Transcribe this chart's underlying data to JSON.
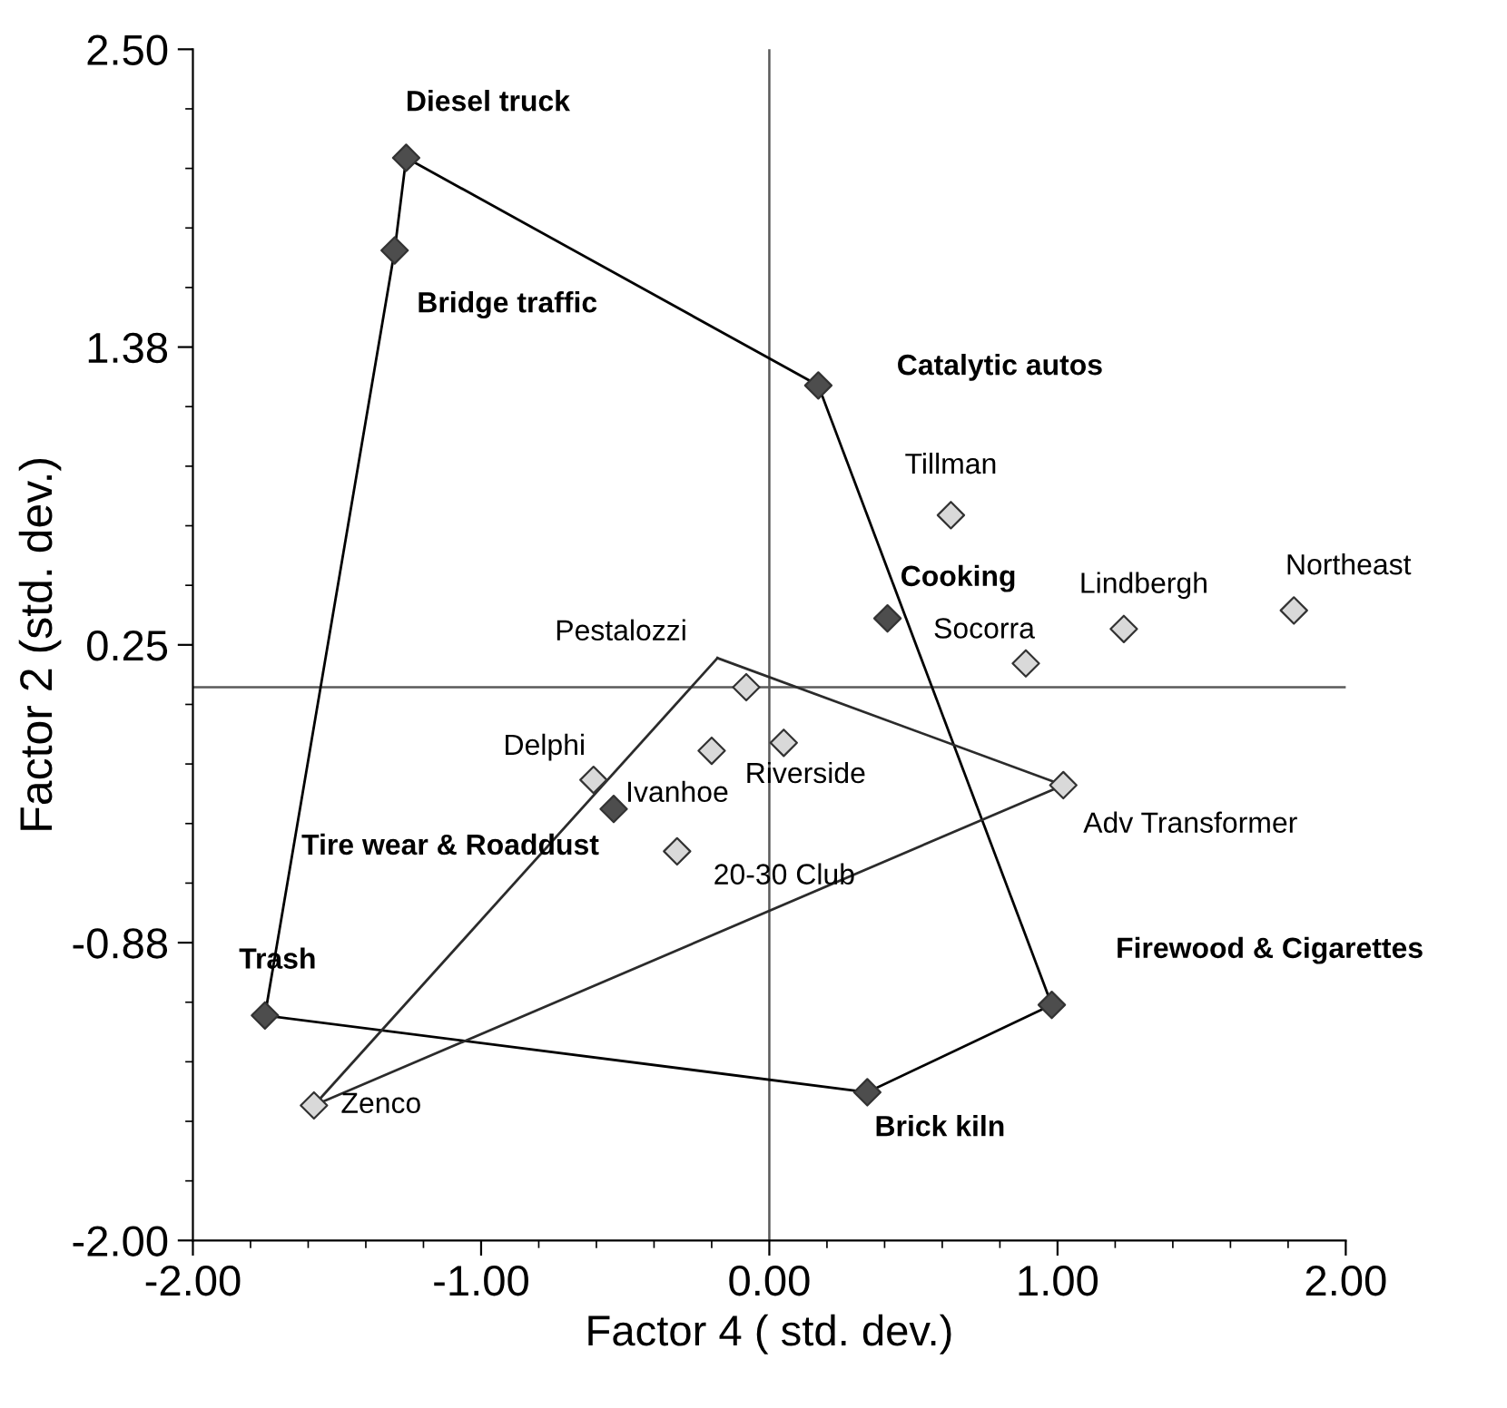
{
  "chart_data": {
    "type": "scatter",
    "xlabel": "Factor 4 ( std. dev.)",
    "ylabel": "Factor 2 (std. dev.)",
    "xlim": [
      -2.0,
      2.0
    ],
    "ylim": [
      -2.0,
      2.5
    ],
    "xticks": [
      {
        "value": -2.0,
        "label": "-2.00"
      },
      {
        "value": -1.0,
        "label": "-1.00"
      },
      {
        "value": 0.0,
        "label": "0.00"
      },
      {
        "value": 1.0,
        "label": "1.00"
      },
      {
        "value": 2.0,
        "label": "2.00"
      }
    ],
    "yticks": [
      {
        "value": -2.0,
        "label": "-2.00"
      },
      {
        "value": -0.875,
        "label": "-0.88"
      },
      {
        "value": 0.25,
        "label": "0.25"
      },
      {
        "value": 1.375,
        "label": "1.38"
      },
      {
        "value": 2.5,
        "label": "2.50"
      }
    ],
    "series": [
      {
        "type": "line",
        "color": "#000000",
        "marker": "none",
        "x": [
          -1.26,
          0.17
        ],
        "values": [
          2.09,
          1.23
        ]
      },
      {
        "type": "line",
        "color": "#000000",
        "marker": "none",
        "x": [
          0.17,
          0.98
        ],
        "values": [
          1.23,
          -1.11
        ]
      },
      {
        "type": "line",
        "color": "#000000",
        "marker": "none",
        "x": [
          0.34,
          0.98
        ],
        "values": [
          -1.44,
          -1.11
        ]
      },
      {
        "type": "line",
        "color": "#000000",
        "marker": "none",
        "x": [
          -1.75,
          0.34
        ],
        "values": [
          -1.15,
          -1.44
        ]
      },
      {
        "type": "line",
        "color": "#000000",
        "marker": "none",
        "x": [
          -1.75,
          -1.3
        ],
        "values": [
          -1.15,
          1.74
        ]
      },
      {
        "type": "line",
        "color": "#000000",
        "marker": "none",
        "x": [
          -1.3,
          -1.26
        ],
        "values": [
          1.74,
          2.09
        ]
      },
      {
        "type": "line",
        "color": "#2b2b2b",
        "marker": "none",
        "x": [
          -0.18,
          1.02
        ],
        "values": [
          0.2,
          -0.28
        ]
      },
      {
        "type": "line",
        "color": "#2b2b2b",
        "marker": "none",
        "x": [
          -1.58,
          1.02
        ],
        "values": [
          -1.49,
          -0.28
        ]
      },
      {
        "type": "line",
        "color": "#2b2b2b",
        "marker": "none",
        "x": [
          -1.58,
          -0.18
        ],
        "values": [
          -1.49,
          0.2
        ]
      },
      {
        "type": "scatter",
        "color": "#4d4d4d",
        "marker": "diamond",
        "x": [
          -1.26,
          -1.3,
          0.17,
          0.41,
          0.98,
          0.34,
          -1.75,
          -0.54
        ],
        "values": [
          2.09,
          1.74,
          1.23,
          0.35,
          -1.11,
          -1.44,
          -1.15,
          -0.37
        ]
      },
      {
        "type": "scatter",
        "color": "#d9d9d9",
        "marker": "diamond",
        "x": [
          0.63,
          1.23,
          1.82,
          0.89,
          -0.08,
          -0.61,
          -0.2,
          0.05,
          1.02,
          -0.32,
          -1.58
        ],
        "values": [
          0.74,
          0.31,
          0.38,
          0.18,
          0.09,
          -0.26,
          -0.15,
          -0.12,
          -0.28,
          -0.53,
          -1.49
        ]
      }
    ],
    "ref_lines": [
      {
        "axis": "x",
        "value": 0.0,
        "color": "#5a5a5a"
      },
      {
        "axis": "y",
        "value": 0.09,
        "color": "#5a5a5a"
      }
    ],
    "annotations": [
      {
        "text": "Diesel truck",
        "x": -1.26,
        "y": 2.09
      },
      {
        "text": "Bridge traffic",
        "x": -1.3,
        "y": 1.74
      },
      {
        "text": "Catalytic autos",
        "x": 0.17,
        "y": 1.23
      },
      {
        "text": "Cooking",
        "x": 0.41,
        "y": 0.35
      },
      {
        "text": "Firewood & Cigarettes",
        "x": 0.98,
        "y": -1.11
      },
      {
        "text": "Brick kiln",
        "x": 0.34,
        "y": -1.44
      },
      {
        "text": "Trash",
        "x": -1.75,
        "y": -1.15
      },
      {
        "text": "Tire wear & Roaddust",
        "x": -0.54,
        "y": -0.37
      },
      {
        "text": "Tillman",
        "x": 0.63,
        "y": 0.74
      },
      {
        "text": "Lindbergh",
        "x": 1.23,
        "y": 0.31
      },
      {
        "text": "Northeast",
        "x": 1.82,
        "y": 0.38
      },
      {
        "text": "Socorra",
        "x": 0.89,
        "y": 0.18
      },
      {
        "text": "Pestalozzi",
        "x": -0.08,
        "y": 0.09
      },
      {
        "text": "Delphi",
        "x": -0.61,
        "y": -0.26
      },
      {
        "text": "Ivanhoe",
        "x": -0.2,
        "y": -0.15
      },
      {
        "text": "Riverside",
        "x": 0.05,
        "y": -0.12
      },
      {
        "text": "Adv Transformer",
        "x": 1.02,
        "y": -0.28
      },
      {
        "text": "20-30 Club",
        "x": -0.32,
        "y": -0.53
      },
      {
        "text": "Zenco",
        "x": -1.58,
        "y": -1.49
      }
    ]
  }
}
